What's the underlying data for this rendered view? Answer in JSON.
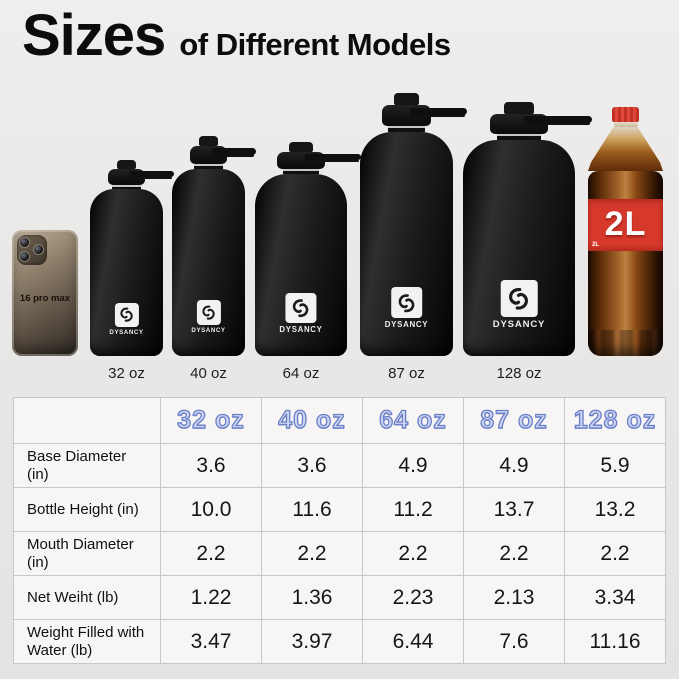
{
  "title": {
    "main": "Sizes",
    "tail": "of Different Models"
  },
  "products": {
    "brand": "DYSANCY",
    "phone": {
      "label": "16 pro max"
    },
    "bottles": [
      {
        "label": "32 oz"
      },
      {
        "label": "40 oz"
      },
      {
        "label": "64 oz"
      },
      {
        "label": "87 oz"
      },
      {
        "label": "128 oz"
      }
    ],
    "cola": {
      "label": "2L",
      "label_small": "2L"
    }
  },
  "table": {
    "col_headers": [
      "32 oz",
      "40 oz",
      "64 oz",
      "87 oz",
      "128 oz"
    ],
    "rows": [
      {
        "label": "Base Diameter (in)",
        "values": [
          "3.6",
          "3.6",
          "4.9",
          "4.9",
          "5.9"
        ]
      },
      {
        "label": "Bottle Height (in)",
        "values": [
          "10.0",
          "11.6",
          "11.2",
          "13.7",
          "13.2"
        ]
      },
      {
        "label": "Mouth Diameter (in)",
        "values": [
          "2.2",
          "2.2",
          "2.2",
          "2.2",
          "2.2"
        ]
      },
      {
        "label": "Net Weiht (lb)",
        "values": [
          "1.22",
          "1.36",
          "2.23",
          "2.13",
          "3.34"
        ]
      },
      {
        "label": "Weight Filled with Water (lb)",
        "values": [
          "3.47",
          "3.97",
          "6.44",
          "7.6",
          "11.16"
        ]
      }
    ]
  },
  "chart_data": {
    "type": "table",
    "title": "Sizes of Different Models",
    "columns": [
      "",
      "32 oz",
      "40 oz",
      "64 oz",
      "87 oz",
      "128 oz"
    ],
    "rows": [
      [
        "Base Diameter (in)",
        3.6,
        3.6,
        4.9,
        4.9,
        5.9
      ],
      [
        "Bottle Height (in)",
        10.0,
        11.6,
        11.2,
        13.7,
        13.2
      ],
      [
        "Mouth Diameter (in)",
        2.2,
        2.2,
        2.2,
        2.2,
        2.2
      ],
      [
        "Net Weiht (lb)",
        1.22,
        1.36,
        2.23,
        2.13,
        3.34
      ],
      [
        "Weight Filled with Water (lb)",
        3.47,
        3.97,
        6.44,
        7.6,
        11.16
      ]
    ]
  },
  "colors": {
    "background": "#e9e8e7",
    "header_fill": "#ccd6f2",
    "header_outline": "#6b7ec7",
    "bottle_black": "#141414",
    "cola_red": "#d6392c",
    "table_border": "#c7c7c7",
    "cell_background": "#f7f6f5"
  }
}
